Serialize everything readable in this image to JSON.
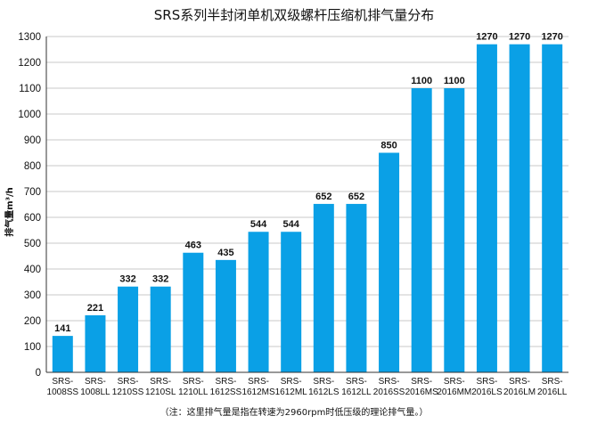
{
  "chart_data": {
    "type": "bar",
    "title": "SRS系列半封闭单机双级螺杆压缩机排气量分布",
    "xlabel": "",
    "ylabel": "排气量m³/h",
    "ylim": [
      0,
      1300
    ],
    "yticks": [
      0,
      100,
      200,
      300,
      400,
      500,
      600,
      700,
      800,
      900,
      1000,
      1100,
      1200,
      1300
    ],
    "grid": true,
    "categories": [
      [
        "SRS-",
        "1008SS"
      ],
      [
        "SRS-",
        "1008LL"
      ],
      [
        "SRS-",
        "1210SS"
      ],
      [
        "SRS-",
        "1210SL"
      ],
      [
        "SRS-",
        "1210LL"
      ],
      [
        "SRS-",
        "1612SS"
      ],
      [
        "SRS-",
        "1612MS"
      ],
      [
        "SRS-",
        "1612ML"
      ],
      [
        "SRS-",
        "1612LS"
      ],
      [
        "SRS-",
        "1612LL"
      ],
      [
        "SRS-",
        "2016SS"
      ],
      [
        "SRS-",
        "2016MS"
      ],
      [
        "SRS-",
        "2016MM"
      ],
      [
        "SRS-",
        "2016LS"
      ],
      [
        "SRS-",
        "2016LM"
      ],
      [
        "SRS-",
        "2016LL"
      ]
    ],
    "values": [
      141,
      221,
      332,
      332,
      463,
      435,
      544,
      544,
      652,
      652,
      850,
      1100,
      1100,
      1270,
      1270,
      1270
    ],
    "bar_color": "#0aa0e6",
    "grid_color": "#c8c8c8",
    "footnote": "（注：这里排气量是指在转速为2960rpm时低压级的理论排气量。）"
  }
}
